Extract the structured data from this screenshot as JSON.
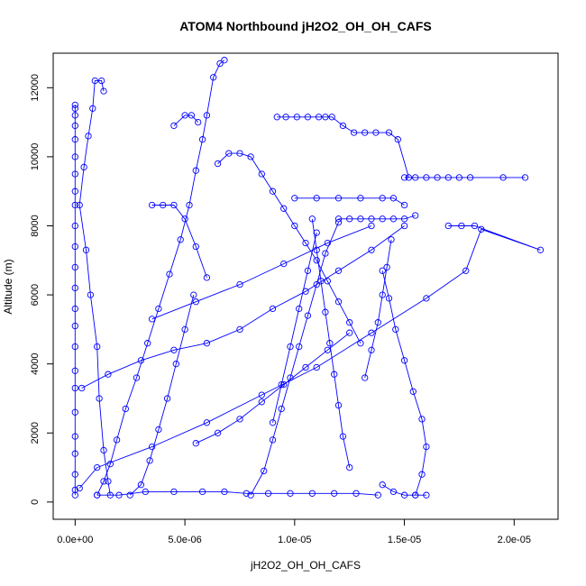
{
  "chart_data": {
    "type": "line",
    "title": "ATOM4 Northbound jH2O2_OH_OH_CAFS",
    "xlabel": "jH2O2_OH_OH_CAFS",
    "ylabel": "Altitude (m)",
    "xlim": [
      -1e-06,
      2.2e-05
    ],
    "ylim": [
      -500,
      13000
    ],
    "x_ticks": [
      {
        "value": 0,
        "label": "0.0e+00"
      },
      {
        "value": 5e-06,
        "label": "5.0e-06"
      },
      {
        "value": 1e-05,
        "label": "1.0e-05"
      },
      {
        "value": 1.5e-05,
        "label": "1.5e-05"
      },
      {
        "value": 2e-05,
        "label": "2.0e-05"
      }
    ],
    "y_ticks": [
      {
        "value": 0,
        "label": "0"
      },
      {
        "value": 2000,
        "label": "2000"
      },
      {
        "value": 4000,
        "label": "4000"
      },
      {
        "value": 6000,
        "label": "6000"
      },
      {
        "value": 8000,
        "label": "8000"
      },
      {
        "value": 10000,
        "label": "10000"
      },
      {
        "value": 12000,
        "label": "12000"
      }
    ],
    "marker": "open-circle",
    "color": "#0000ff",
    "grid": false,
    "series": [
      {
        "x": [
          0,
          0,
          0,
          0,
          0,
          0,
          0,
          0,
          0,
          0,
          0,
          0,
          0,
          0,
          0,
          0,
          0,
          0,
          0,
          0,
          0,
          0,
          0,
          0
        ],
        "y": [
          200,
          350,
          800,
          1400,
          1900,
          2600,
          3300,
          3800,
          4500,
          5100,
          5600,
          6200,
          6800,
          7400,
          8000,
          8600,
          9000,
          9500,
          10000,
          10500,
          10900,
          11200,
          11400,
          11500
        ]
      },
      {
        "x": [
          1.3e-06,
          1.2e-06,
          9e-07,
          8e-07,
          6e-07,
          4e-07,
          2e-07,
          5e-07,
          7e-07,
          1e-06,
          1.1e-06,
          1.3e-06,
          1.5e-06,
          1.6e-06
        ],
        "y": [
          11900,
          12200,
          12200,
          11400,
          10600,
          9700,
          8600,
          7300,
          6000,
          4500,
          3000,
          1500,
          600,
          200
        ]
      },
      {
        "x": [
          6.8e-06,
          6.6e-06,
          6.3e-06,
          6e-06,
          5.8e-06,
          5.5e-06,
          5.2e-06,
          4.8e-06,
          4.3e-06,
          3.8e-06,
          3.3e-06,
          2.8e-06,
          2.3e-06,
          1.9e-06,
          1.6e-06,
          1.3e-06,
          1e-06
        ],
        "y": [
          12800,
          12700,
          12300,
          11200,
          10500,
          9600,
          8600,
          7600,
          6600,
          5600,
          4600,
          3600,
          2700,
          1800,
          1100,
          600,
          200
        ]
      },
      {
        "x": [
          9.2e-06,
          9.6e-06,
          1.01e-05,
          1.06e-05,
          1.11e-05,
          1.14e-05,
          1.17e-05,
          1.22e-05,
          1.27e-05,
          1.32e-05,
          1.37e-05,
          1.43e-05,
          1.47e-05,
          1.52e-05
        ],
        "y": [
          11150,
          11150,
          11150,
          11150,
          11150,
          11150,
          11150,
          10900,
          10700,
          10700,
          10700,
          10700,
          10500,
          9400
        ]
      },
      {
        "x": [
          1.5e-05,
          1.55e-05,
          1.6e-05,
          1.65e-05,
          1.7e-05,
          1.75e-05,
          1.8e-05,
          1.95e-05,
          2.05e-05
        ],
        "y": [
          9400,
          9400,
          9400,
          9400,
          9400,
          9400,
          9400,
          9400,
          9400
        ]
      },
      {
        "x": [
          1.7e-05,
          1.76e-05,
          1.82e-05,
          2.12e-05,
          1.85e-05,
          1.78e-05,
          1.6e-05,
          1.35e-05,
          1.1e-05,
          8.5e-06,
          6e-06,
          3.5e-06,
          1e-06,
          2e-07
        ],
        "y": [
          8000,
          8000,
          8000,
          7300,
          7900,
          6700,
          5900,
          4900,
          3900,
          3100,
          2300,
          1600,
          1000,
          400
        ]
      },
      {
        "x": [
          1.2e-05,
          1.25e-05,
          1.3e-05,
          1.35e-05,
          1.4e-05,
          1.45e-05,
          1.5e-05,
          1.55e-05
        ],
        "y": [
          8200,
          8200,
          8200,
          8200,
          8200,
          8200,
          8200,
          8300
        ]
      },
      {
        "x": [
          1e-05,
          1.1e-05,
          1.2e-05,
          1.3e-05,
          1.4e-05,
          1.45e-05,
          1.5e-05
        ],
        "y": [
          8800,
          8800,
          8800,
          8800,
          8800,
          8800,
          8600
        ]
      },
      {
        "x": [
          3e-07,
          1.5e-06,
          3e-06,
          4.5e-06,
          6e-06,
          7.5e-06,
          9e-06,
          1.05e-05,
          1.2e-05,
          1.35e-05,
          1.5e-05
        ],
        "y": [
          3300,
          3700,
          4100,
          4400,
          4600,
          5000,
          5600,
          6100,
          6700,
          7300,
          8000
        ]
      },
      {
        "x": [
          3.5e-06,
          5.5e-06,
          7.5e-06,
          9.5e-06,
          1.15e-05,
          1.35e-05
        ],
        "y": [
          5300,
          5800,
          6300,
          6900,
          7500,
          8000
        ]
      },
      {
        "x": [
          8e-06,
          8.6e-06,
          9e-06,
          9.4e-06,
          9.8e-06,
          1.02e-05,
          1.06e-05,
          1.1e-05,
          1.14e-05,
          1.2e-05
        ],
        "y": [
          200,
          900,
          1800,
          2700,
          3600,
          4500,
          5400,
          6300,
          7200,
          8100
        ]
      },
      {
        "x": [
          1.55e-05,
          1.58e-05,
          1.6e-05,
          1.58e-05,
          1.54e-05,
          1.5e-05,
          1.46e-05,
          1.43e-05,
          1.4e-05
        ],
        "y": [
          200,
          800,
          1600,
          2400,
          3200,
          4100,
          5000,
          5900,
          6700
        ]
      },
      {
        "x": [
          1e-06,
          2e-06,
          3.2e-06,
          4.5e-06,
          5.8e-06,
          6.8e-06,
          7.8e-06,
          8.8e-06,
          9.8e-06,
          1.08e-05,
          1.18e-05,
          1.28e-05,
          1.38e-05
        ],
        "y": [
          200,
          200,
          300,
          300,
          300,
          300,
          250,
          250,
          250,
          250,
          250,
          250,
          200
        ]
      },
      {
        "x": [
          2.5e-06,
          3e-06,
          3.4e-06,
          3.8e-06,
          4.2e-06,
          4.6e-06,
          5e-06,
          5.4e-06
        ],
        "y": [
          200,
          500,
          1200,
          2100,
          3000,
          4000,
          5000,
          6000
        ]
      },
      {
        "x": [
          3.5e-06,
          4e-06,
          4.5e-06,
          5e-06,
          5.5e-06,
          6e-06
        ],
        "y": [
          8600,
          8600,
          8600,
          8200,
          7400,
          6500
        ]
      },
      {
        "x": [
          4.5e-06,
          5e-06,
          5.3e-06,
          5.6e-06
        ],
        "y": [
          10900,
          11200,
          11200,
          11000
        ]
      },
      {
        "x": [
          6.5e-06,
          7e-06,
          7.5e-06,
          8e-06,
          8.5e-06,
          9e-06,
          9.5e-06,
          1e-05,
          1.05e-05,
          1.1e-05,
          1.15e-05,
          1.2e-05,
          1.25e-05,
          1.3e-05
        ],
        "y": [
          9800,
          10100,
          10100,
          10000,
          9500,
          9000,
          8500,
          8000,
          7500,
          7000,
          6400,
          5800,
          5200,
          4600
        ]
      },
      {
        "x": [
          1.25e-05,
          1.22e-05,
          1.2e-05,
          1.18e-05,
          1.16e-05,
          1.14e-05,
          1.12e-05,
          1.1e-05,
          1.08e-05
        ],
        "y": [
          1000,
          1900,
          2800,
          3700,
          4600,
          5500,
          6400,
          7300,
          8200
        ]
      },
      {
        "x": [
          1.32e-05,
          1.35e-05,
          1.38e-05,
          1.4e-05,
          1.42e-05,
          1.44e-05
        ],
        "y": [
          3600,
          4400,
          5200,
          6000,
          6800,
          7600
        ]
      },
      {
        "x": [
          9e-06,
          9.4e-06,
          9.8e-06,
          1.02e-05,
          1.06e-05,
          1.1e-05
        ],
        "y": [
          2300,
          3400,
          4500,
          5600,
          6700,
          7800
        ]
      },
      {
        "x": [
          5.5e-06,
          6.5e-06,
          7.5e-06,
          8.5e-06,
          9.5e-06,
          1.05e-05,
          1.15e-05,
          1.25e-05
        ],
        "y": [
          1700,
          2000,
          2400,
          2900,
          3400,
          3900,
          4400,
          4900
        ]
      },
      {
        "x": [
          1.4e-05,
          1.45e-05,
          1.5e-05,
          1.55e-05,
          1.6e-05
        ],
        "y": [
          500,
          300,
          200,
          200,
          200
        ]
      }
    ]
  }
}
